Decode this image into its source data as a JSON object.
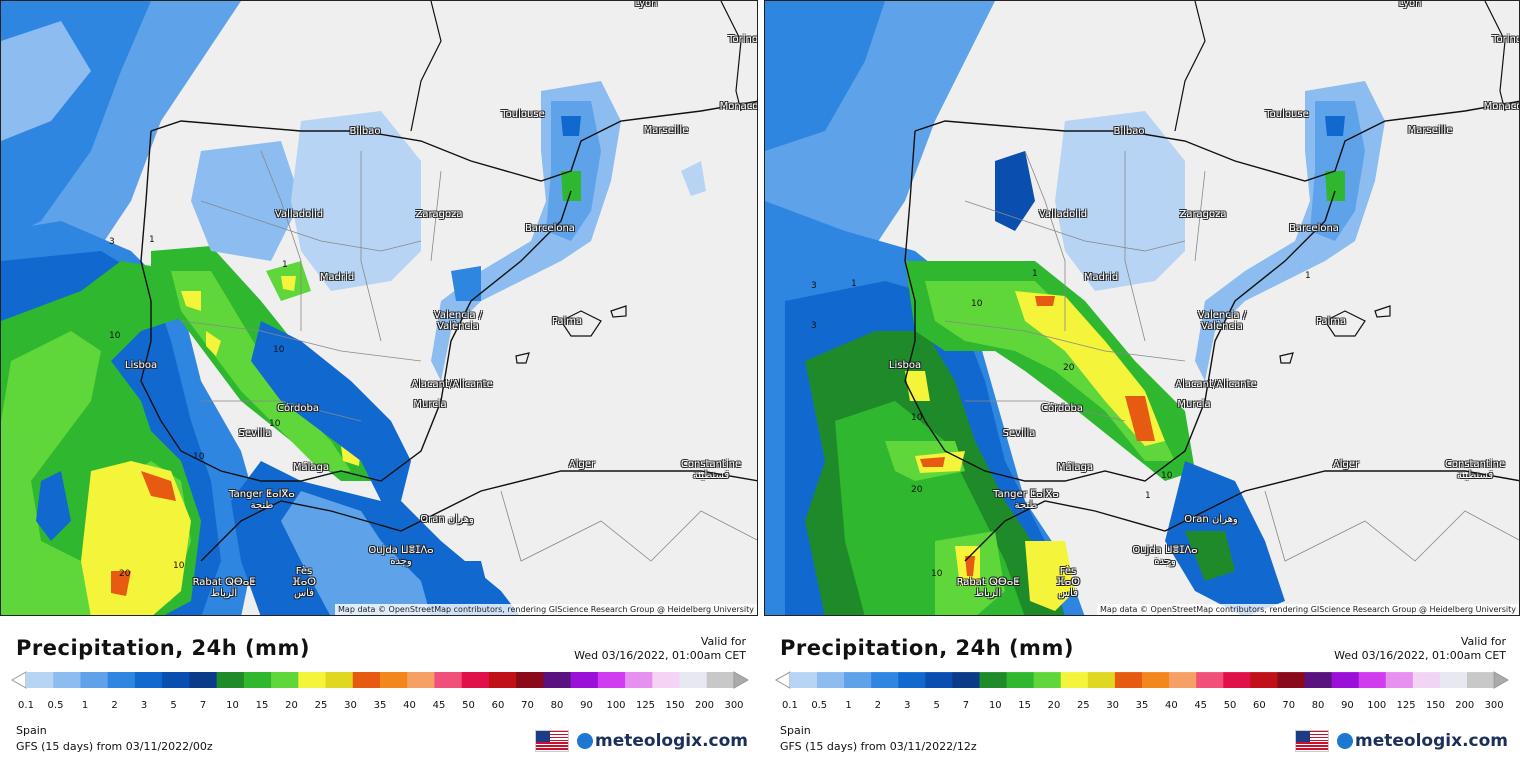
{
  "panels": [
    {
      "id": "left",
      "title": "Precipitation, 24h (mm)",
      "valid_label": "Valid for",
      "valid_time": "Wed 03/16/2022, 01:00am CET",
      "region": "Spain",
      "model_run": "GFS (15 days) from  03/11/2022/00z",
      "attribution": "Map data © OpenStreetMap contributors, rendering GIScience Research Group @ Heidelberg University",
      "contour_labels": [
        "3",
        "1",
        "1",
        "10",
        "10",
        "10",
        "10",
        "10",
        "20"
      ]
    },
    {
      "id": "right",
      "title": "Precipitation, 24h (mm)",
      "valid_label": "Valid for",
      "valid_time": "Wed 03/16/2022, 01:00am CET",
      "region": "Spain",
      "model_run": "GFS (15 days) from  03/11/2022/12z",
      "attribution": "Map data © OpenStreetMap contributors, rendering GIScience Research Group @ Heidelberg University",
      "contour_labels": [
        "3",
        "1",
        "1",
        "3",
        "10",
        "20",
        "10",
        "20",
        "10",
        "10",
        "1",
        "1"
      ]
    }
  ],
  "cities": [
    "Lyon",
    "Torino",
    "Monaco",
    "Toulouse",
    "Marseille",
    "Bilbao",
    "Valladolid",
    "Zaragoza",
    "Barcelona",
    "Madrid",
    "Valencia / València",
    "Palma",
    "Lisboa",
    "Alacant/Alicante",
    "Murcia",
    "Córdoba",
    "Sevilla",
    "Málaga",
    "Alger",
    "Constantine قسنطينة",
    "Tanger ⵟⴰⵏⴳⴰ طنجة",
    "Oran وهران",
    "Oujda ⵡⴻⵊⴷⴰ وجدة",
    "Rabat ⵕⴱⴰⵟ الرباط",
    "Fès ⴼⴰⵙ فاس"
  ],
  "legend": {
    "ticks": [
      "0.1",
      "0.5",
      "1",
      "2",
      "3",
      "5",
      "7",
      "10",
      "15",
      "20",
      "25",
      "30",
      "35",
      "40",
      "45",
      "50",
      "60",
      "70",
      "80",
      "90",
      "100",
      "125",
      "150",
      "200",
      "300"
    ],
    "colors": [
      "#b7d4f5",
      "#8cbcf0",
      "#5ea2ea",
      "#2f86e0",
      "#1169d0",
      "#0a4fb0",
      "#0a3a8a",
      "#1f8a2a",
      "#2fb72f",
      "#5fd63a",
      "#f4f43a",
      "#e0d820",
      "#e65a12",
      "#f4861e",
      "#f6a066",
      "#f0507a",
      "#e0104a",
      "#c01018",
      "#8a0a1a",
      "#5a127e",
      "#9a10d8",
      "#d03cf0",
      "#e890f0",
      "#f4d4f6",
      "#e8e8f0",
      "#c8c8c8"
    ],
    "no_data_color": "#eeeeee"
  },
  "brand": {
    "name": "meteologix.com"
  }
}
